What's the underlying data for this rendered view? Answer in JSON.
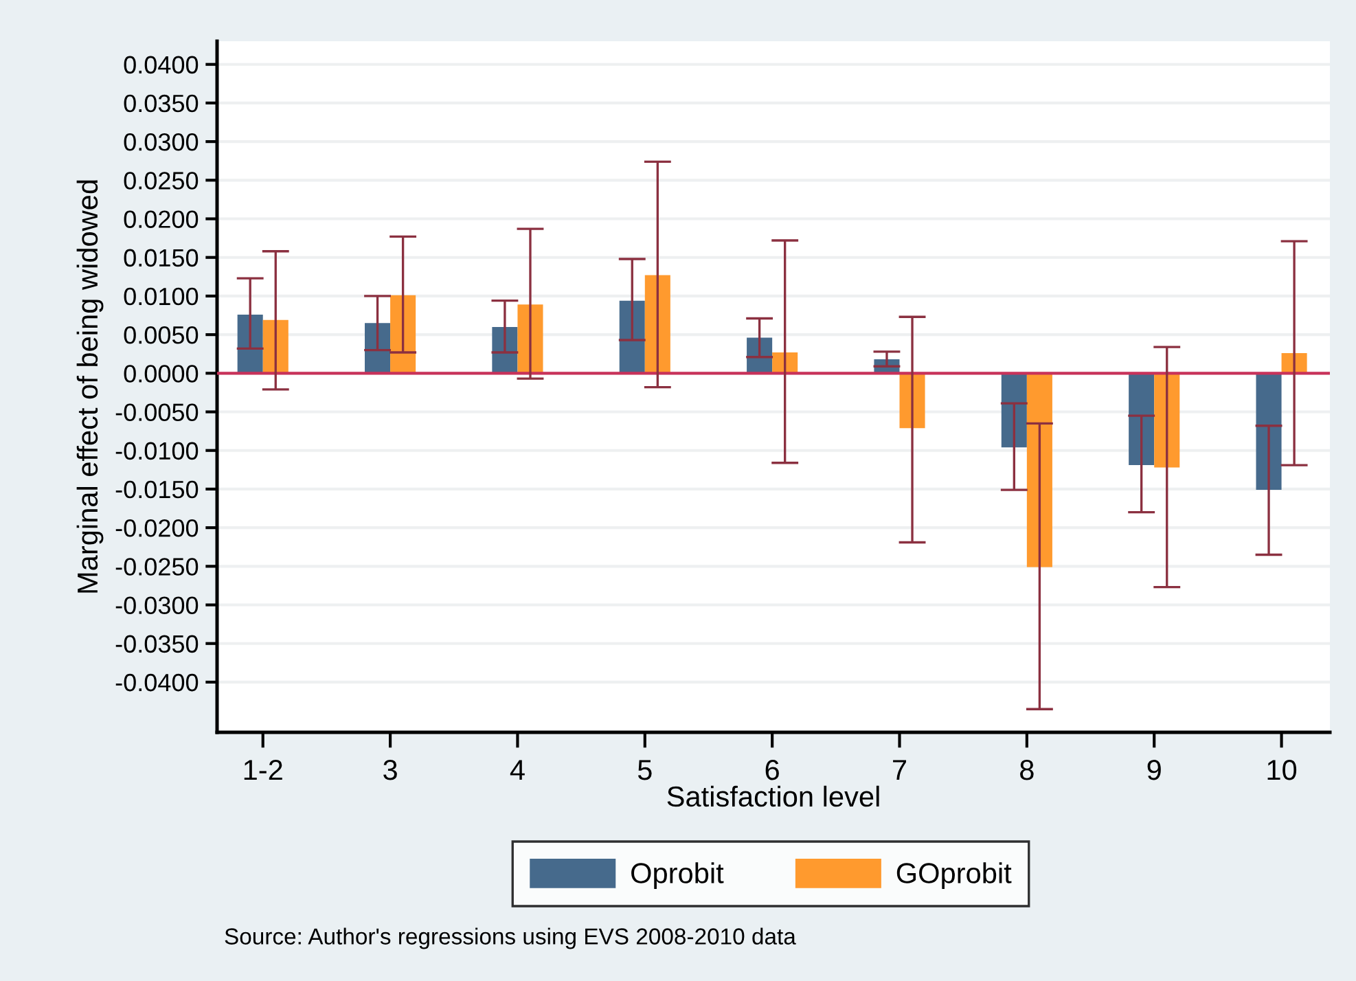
{
  "chart_data": {
    "type": "bar",
    "xlabel": "Satisfaction level",
    "ylabel": "Marginal effect of being widowed",
    "categories": [
      "1-2",
      "3",
      "4",
      "5",
      "6",
      "7",
      "8",
      "9",
      "10"
    ],
    "series": [
      {
        "name": "Oprobit",
        "color": "#466a8c",
        "values": [
          0.0076,
          0.0065,
          0.006,
          0.0094,
          0.0046,
          0.0018,
          -0.0096,
          -0.0119,
          -0.0151
        ],
        "errors": [
          [
            0.0032,
            0.0123
          ],
          [
            0.003,
            0.01
          ],
          [
            0.0027,
            0.0094
          ],
          [
            0.0043,
            0.0148
          ],
          [
            0.0021,
            0.0071
          ],
          [
            0.0009,
            0.0028
          ],
          [
            -0.0151,
            -0.0039
          ],
          [
            -0.018,
            -0.0055
          ],
          [
            -0.0235,
            -0.0068
          ]
        ]
      },
      {
        "name": "GOprobit",
        "color": "#ff9a2e",
        "values": [
          0.0069,
          0.0101,
          0.0089,
          0.0127,
          0.0027,
          -0.0071,
          -0.0251,
          -0.0122,
          0.0026
        ],
        "errors": [
          [
            -0.0021,
            0.0158
          ],
          [
            0.0027,
            0.0177
          ],
          [
            -0.0007,
            0.0187
          ],
          [
            -0.0018,
            0.0274
          ],
          [
            -0.0116,
            0.0172
          ],
          [
            -0.0219,
            0.0073
          ],
          [
            -0.0435,
            -0.0065
          ],
          [
            -0.0277,
            0.0034
          ],
          [
            -0.0119,
            0.0171
          ]
        ]
      }
    ],
    "ylim": [
      -0.0465,
      0.043
    ],
    "yticks": [
      {
        "value": 0.04,
        "label": "0.0400"
      },
      {
        "value": 0.035,
        "label": "0.0350"
      },
      {
        "value": 0.03,
        "label": "0.0300"
      },
      {
        "value": 0.025,
        "label": "0.0250"
      },
      {
        "value": 0.02,
        "label": "0.0200"
      },
      {
        "value": 0.015,
        "label": "0.0150"
      },
      {
        "value": 0.01,
        "label": "0.0100"
      },
      {
        "value": 0.005,
        "label": "0.0050"
      },
      {
        "value": 0,
        "label": "0.0000"
      },
      {
        "value": -0.005,
        "label": "-0.0050"
      },
      {
        "value": -0.01,
        "label": "-0.0100"
      },
      {
        "value": -0.015,
        "label": "-0.0150"
      },
      {
        "value": -0.02,
        "label": "-0.0200"
      },
      {
        "value": -0.025,
        "label": "-0.0250"
      },
      {
        "value": -0.03,
        "label": "-0.0300"
      },
      {
        "value": -0.035,
        "label": "-0.0350"
      },
      {
        "value": -0.04,
        "label": "-0.0400"
      }
    ],
    "ref_lines": [
      {
        "axis": "y",
        "value": 0,
        "color": "#c8325a"
      }
    ],
    "grid": "y",
    "legend": "bottom",
    "annotations": [
      "Source: Author's regressions using EVS 2008-2010 data"
    ]
  }
}
